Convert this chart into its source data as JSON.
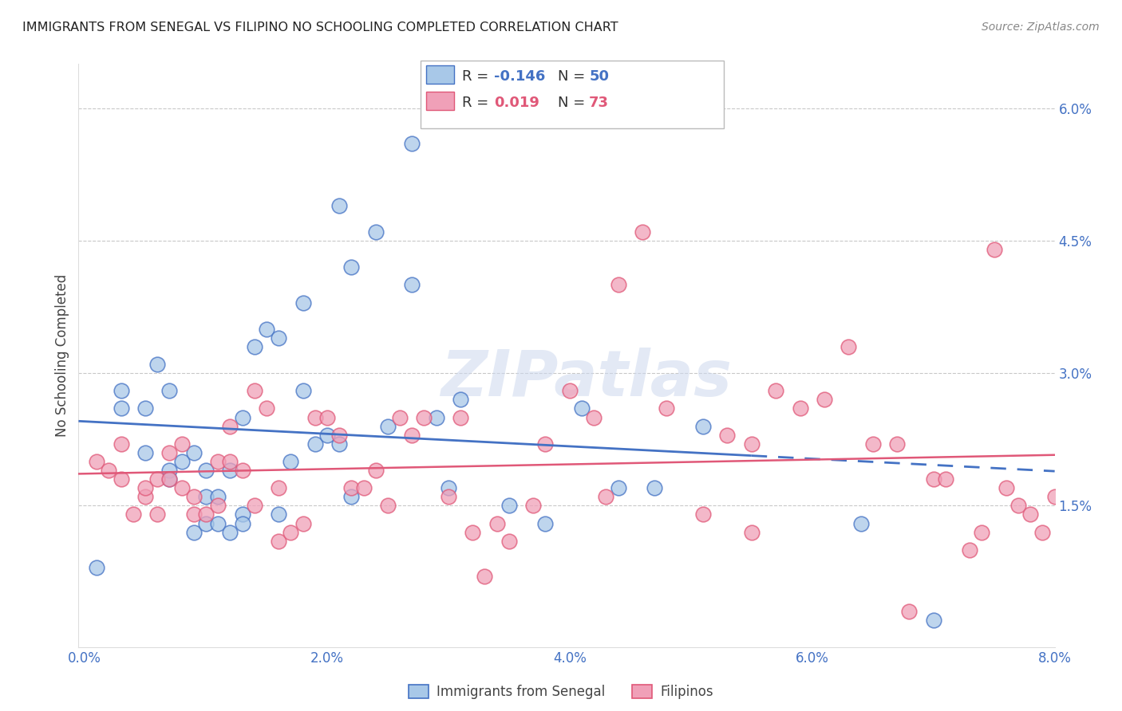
{
  "title": "IMMIGRANTS FROM SENEGAL VS FILIPINO NO SCHOOLING COMPLETED CORRELATION CHART",
  "source": "Source: ZipAtlas.com",
  "ylabel": "No Schooling Completed",
  "x_tick_labels": [
    "0.0%",
    "2.0%",
    "4.0%",
    "6.0%",
    "8.0%"
  ],
  "x_tick_values": [
    0.0,
    2.0,
    4.0,
    6.0,
    8.0
  ],
  "y_tick_labels_right": [
    "1.5%",
    "3.0%",
    "4.5%",
    "6.0%"
  ],
  "y_tick_values": [
    1.5,
    3.0,
    4.5,
    6.0
  ],
  "xlim": [
    -0.05,
    8.0
  ],
  "ylim": [
    -0.1,
    6.5
  ],
  "legend_label1": "Immigrants from Senegal",
  "legend_label2": "Filipinos",
  "color_blue": "#a8c8e8",
  "color_pink": "#f0a0b8",
  "color_blue_line": "#4472c4",
  "color_pink_line": "#e05878",
  "color_axis_label": "#4472c4",
  "background_color": "#ffffff",
  "grid_color": "#bbbbbb",
  "watermark_text": "ZIPatlas",
  "senegal_x": [
    0.1,
    0.3,
    0.3,
    0.5,
    0.5,
    0.6,
    0.7,
    0.7,
    0.7,
    0.8,
    0.9,
    0.9,
    1.0,
    1.0,
    1.0,
    1.1,
    1.1,
    1.2,
    1.2,
    1.3,
    1.3,
    1.3,
    1.4,
    1.5,
    1.6,
    1.6,
    1.7,
    1.8,
    1.8,
    1.9,
    2.0,
    2.1,
    2.1,
    2.2,
    2.2,
    2.4,
    2.5,
    2.7,
    2.7,
    2.9,
    3.0,
    3.1,
    3.5,
    3.8,
    4.1,
    4.4,
    4.7,
    5.1,
    6.4,
    7.0
  ],
  "senegal_y": [
    0.8,
    2.8,
    2.6,
    2.6,
    2.1,
    3.1,
    2.8,
    1.9,
    1.8,
    2.0,
    1.2,
    2.1,
    1.3,
    1.6,
    1.9,
    1.3,
    1.6,
    1.2,
    1.9,
    2.5,
    1.4,
    1.3,
    3.3,
    3.5,
    1.4,
    3.4,
    2.0,
    2.8,
    3.8,
    2.2,
    2.3,
    4.9,
    2.2,
    4.2,
    1.6,
    4.6,
    2.4,
    5.6,
    4.0,
    2.5,
    1.7,
    2.7,
    1.5,
    1.3,
    2.6,
    1.7,
    1.7,
    2.4,
    1.3,
    0.2
  ],
  "filipino_x": [
    0.1,
    0.2,
    0.3,
    0.3,
    0.4,
    0.5,
    0.5,
    0.6,
    0.6,
    0.7,
    0.7,
    0.8,
    0.8,
    0.9,
    0.9,
    1.0,
    1.1,
    1.1,
    1.2,
    1.2,
    1.3,
    1.4,
    1.4,
    1.5,
    1.6,
    1.6,
    1.7,
    1.8,
    1.9,
    2.0,
    2.1,
    2.2,
    2.3,
    2.4,
    2.5,
    2.6,
    2.7,
    2.8,
    3.0,
    3.1,
    3.2,
    3.4,
    3.5,
    3.7,
    3.8,
    4.0,
    4.2,
    4.4,
    4.6,
    4.8,
    5.1,
    5.3,
    5.5,
    5.7,
    5.9,
    6.1,
    6.3,
    6.5,
    6.7,
    7.0,
    7.1,
    7.3,
    7.4,
    7.5,
    7.6,
    7.7,
    7.8,
    7.9,
    8.0,
    6.8,
    5.5,
    4.3,
    3.3
  ],
  "filipino_y": [
    2.0,
    1.9,
    1.8,
    2.2,
    1.4,
    1.6,
    1.7,
    1.8,
    1.4,
    2.1,
    1.8,
    2.2,
    1.7,
    1.4,
    1.6,
    1.4,
    2.0,
    1.5,
    2.0,
    2.4,
    1.9,
    2.8,
    1.5,
    2.6,
    1.1,
    1.7,
    1.2,
    1.3,
    2.5,
    2.5,
    2.3,
    1.7,
    1.7,
    1.9,
    1.5,
    2.5,
    2.3,
    2.5,
    1.6,
    2.5,
    1.2,
    1.3,
    1.1,
    1.5,
    2.2,
    2.8,
    2.5,
    4.0,
    4.6,
    2.6,
    1.4,
    2.3,
    1.2,
    2.8,
    2.6,
    2.7,
    3.3,
    2.2,
    2.2,
    1.8,
    1.8,
    1.0,
    1.2,
    4.4,
    1.7,
    1.5,
    1.4,
    1.2,
    1.6,
    0.3,
    2.2,
    1.6,
    0.7
  ],
  "blue_trend_x0": 0.0,
  "blue_trend_x1": 8.0,
  "pink_trend_x0": 0.0,
  "pink_trend_x1": 8.0,
  "dash_start_x": 5.5
}
